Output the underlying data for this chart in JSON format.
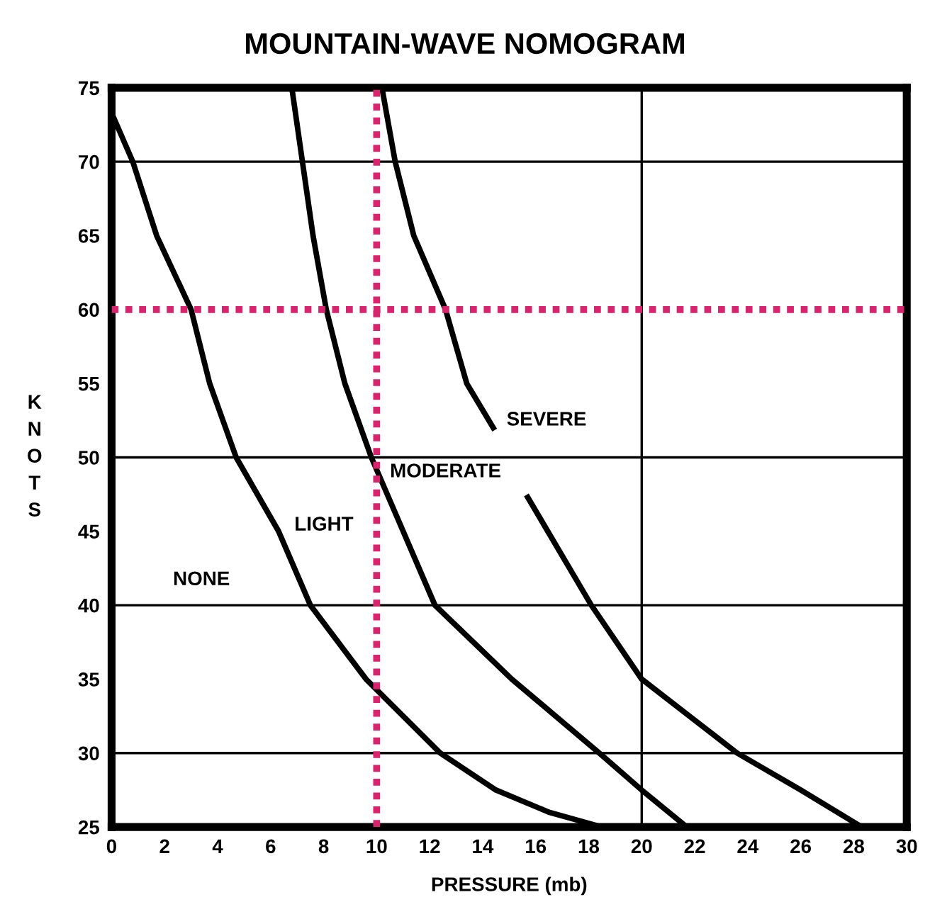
{
  "chart_data": {
    "type": "line",
    "title": "MOUNTAIN-WAVE NOMOGRAM",
    "xlabel": "PRESSURE (mb)",
    "ylabel": "KNOTS",
    "xlim": [
      0,
      30
    ],
    "ylim": [
      25,
      75
    ],
    "xticks": [
      0,
      2,
      4,
      6,
      8,
      10,
      12,
      14,
      16,
      18,
      20,
      22,
      24,
      26,
      28,
      30
    ],
    "yticks": [
      25,
      30,
      35,
      40,
      45,
      50,
      55,
      60,
      65,
      70,
      75
    ],
    "grid": false,
    "marker": "none",
    "line_style": "solid",
    "series": [
      {
        "color": "#000000",
        "x": [
          0,
          0.8,
          1.7,
          3.0,
          3.7,
          4.7,
          6.3,
          7.5,
          9.6,
          12.4,
          14.5,
          16.5,
          18.5
        ],
        "values": [
          73.3,
          70,
          65,
          60,
          55,
          50,
          45,
          40,
          35,
          30,
          27.5,
          26,
          25
        ]
      },
      {
        "color": "#000000",
        "x": [
          6.8,
          7.2,
          7.6,
          8.1,
          8.8,
          9.8,
          11.0,
          12.2,
          15.1,
          18.4,
          20.0,
          21.7
        ],
        "values": [
          75,
          70,
          65,
          60,
          55,
          50,
          45,
          40,
          35,
          30,
          27.5,
          25
        ]
      },
      {
        "color": "#000000",
        "x": [
          10.2,
          10.7,
          11.4,
          12.6,
          13.4,
          14.4,
          null,
          15.7,
          18.1,
          20.0,
          23.6,
          26.0,
          28.3
        ],
        "values": [
          75,
          70,
          65,
          60,
          55,
          52,
          null,
          47.3,
          40,
          35,
          30,
          27.5,
          25
        ]
      }
    ],
    "ref_lines": [
      {
        "axis": "y",
        "value": 30,
        "color": "#000000",
        "line_style": "solid"
      },
      {
        "axis": "y",
        "value": 40,
        "color": "#000000",
        "line_style": "solid"
      },
      {
        "axis": "y",
        "value": 50,
        "color": "#000000",
        "line_style": "solid"
      },
      {
        "axis": "y",
        "value": 70,
        "color": "#000000",
        "line_style": "solid"
      },
      {
        "axis": "x",
        "value": 20,
        "color": "#000000",
        "line_style": "solid"
      },
      {
        "axis": "x",
        "value": 10,
        "color": "#d6246e",
        "line_style": "dotted"
      },
      {
        "axis": "y",
        "value": 60,
        "color": "#d6246e",
        "line_style": "dotted"
      }
    ],
    "annotations": [
      "NONE",
      "LIGHT",
      "MODERATE",
      "SEVERE"
    ]
  }
}
